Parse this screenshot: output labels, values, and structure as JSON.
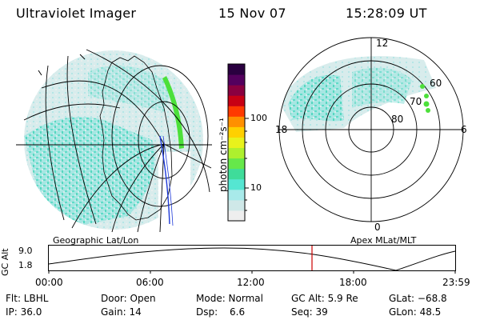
{
  "header": {
    "title": "Ultraviolet Imager",
    "date": "15 Nov 07",
    "time": "15:28:09 UT"
  },
  "colorbar": {
    "unit_label": "photon cm⁻²s⁻¹",
    "ticks": [
      "100",
      "10"
    ]
  },
  "polar": {
    "mlt_labels": {
      "top": "12",
      "left": "18",
      "right": "6",
      "bottom": "0"
    },
    "lat_labels": [
      "60",
      "70",
      "80"
    ]
  },
  "panels": {
    "left_label": "Geographic Lat/Lon",
    "right_label": "Apex MLat/MLT"
  },
  "altitude_plot": {
    "ylabel": "GC Alt",
    "y_ticks": [
      "9.0",
      "1.8"
    ],
    "x_ticks": [
      "00:00",
      "06:00",
      "12:00",
      "18:00",
      "23:59"
    ]
  },
  "info": {
    "flt": "Flt: LBHL",
    "ip": "IP: 36.0",
    "door": "Door: Open",
    "gain": "Gain: 14",
    "mode": "Mode: Normal",
    "dsp_label": "Dsp:",
    "dsp_value": "6.6",
    "gcalt": "GC Alt: 5.9 Re",
    "seq": "Seq: 39",
    "glat": "GLat:  −68.8",
    "glon": "GLon:  48.5"
  },
  "colors": {
    "colorbar": [
      "#eeeeee",
      "#cfe8e8",
      "#a8eaea",
      "#55e6d2",
      "#3fdc9a",
      "#66e84a",
      "#aef02e",
      "#e8f21c",
      "#ffd000",
      "#ff9000",
      "#ff3a00",
      "#c80014",
      "#8a0040",
      "#54005e",
      "#2a0040"
    ],
    "speckle_main": "#8ee8e2",
    "speckle_light": "#d2ecec",
    "oval_green": "#4ce03a",
    "marker_red": "#cc0000"
  }
}
